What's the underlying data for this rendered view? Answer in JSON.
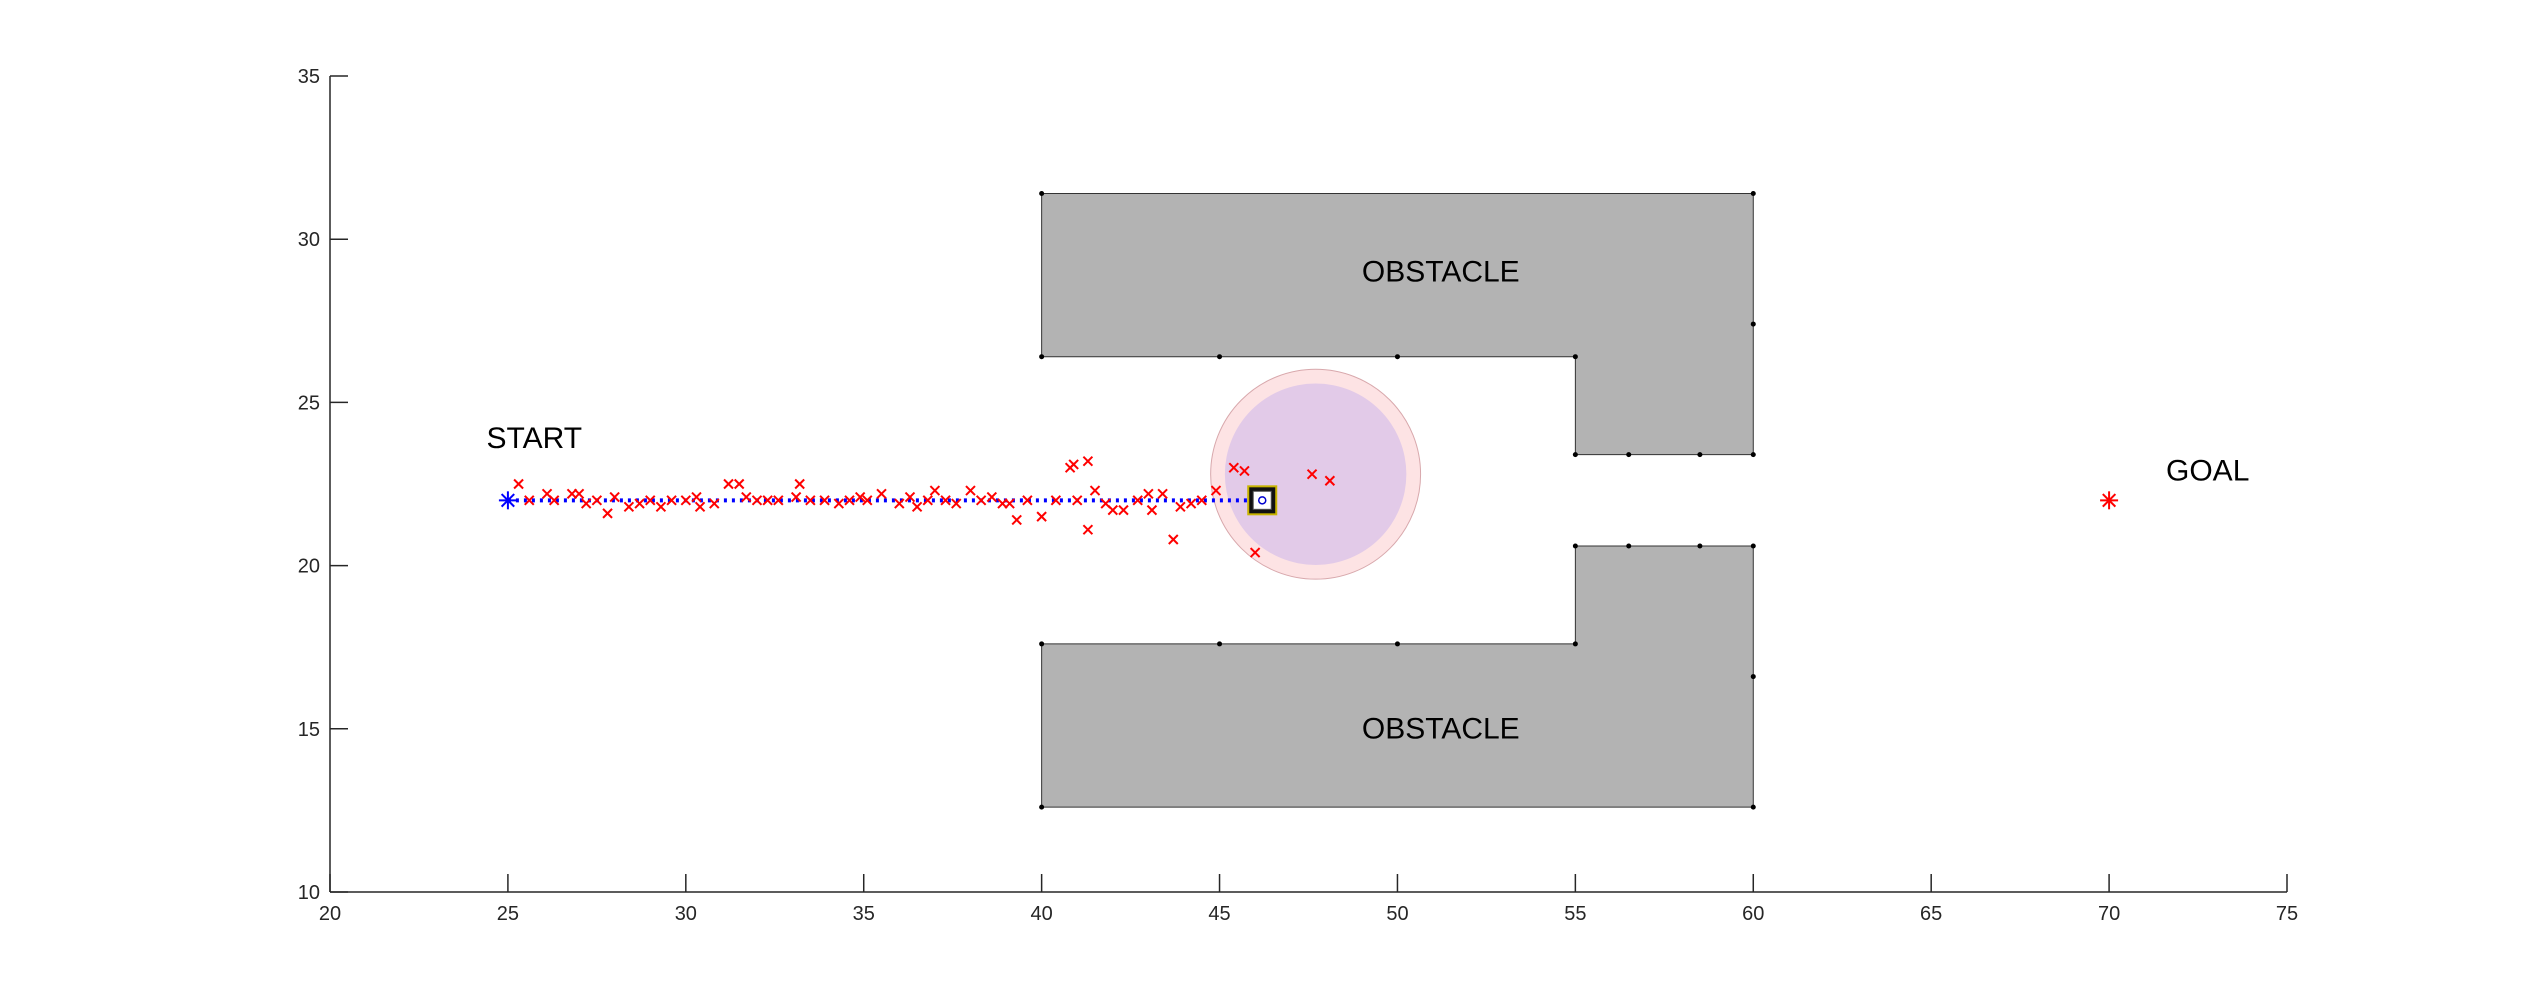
{
  "chart_data": {
    "type": "scatter",
    "title": "",
    "xlabel": "",
    "ylabel": "",
    "xlim": [
      20,
      75
    ],
    "ylim": [
      10,
      35
    ],
    "xticks": [
      20,
      25,
      30,
      35,
      40,
      45,
      50,
      55,
      60,
      65,
      70,
      75
    ],
    "yticks": [
      10,
      15,
      20,
      25,
      30,
      35
    ],
    "grid": false,
    "box": false,
    "colors": {
      "obstacle": "#b3b3b3",
      "path": "#0000ff",
      "measurement": "#ff0000",
      "sensor_outer": "#fde3e4",
      "sensor_inner": "#e2cae8",
      "axis": "#262626"
    },
    "obstacles": [
      {
        "polygon": [
          [
            40,
            31.4
          ],
          [
            60,
            31.4
          ],
          [
            60,
            23.4
          ],
          [
            55,
            23.4
          ],
          [
            55,
            26.4
          ],
          [
            40,
            26.4
          ]
        ],
        "vertices": [
          [
            40,
            31.4
          ],
          [
            60,
            31.4
          ],
          [
            60,
            27.4
          ],
          [
            60,
            23.4
          ],
          [
            58.5,
            23.4
          ],
          [
            56.5,
            23.4
          ],
          [
            55,
            23.4
          ],
          [
            55,
            26.4
          ],
          [
            50,
            26.4
          ],
          [
            45,
            26.4
          ],
          [
            40,
            26.4
          ]
        ]
      },
      {
        "polygon": [
          [
            40,
            12.6
          ],
          [
            60,
            12.6
          ],
          [
            60,
            20.6
          ],
          [
            55,
            20.6
          ],
          [
            55,
            17.6
          ],
          [
            40,
            17.6
          ]
        ],
        "vertices": [
          [
            40,
            12.6
          ],
          [
            60,
            12.6
          ],
          [
            60,
            16.6
          ],
          [
            60,
            20.6
          ],
          [
            58.5,
            20.6
          ],
          [
            56.5,
            20.6
          ],
          [
            55,
            20.6
          ],
          [
            55,
            17.6
          ],
          [
            50,
            17.6
          ],
          [
            45,
            17.6
          ],
          [
            40,
            17.6
          ]
        ]
      }
    ],
    "annotations": [
      {
        "text": "START",
        "x": 24.4,
        "y": 23.6
      },
      {
        "text": "GOAL",
        "x": 71.6,
        "y": 22.6
      },
      {
        "text": "OBSTACLE",
        "x": 49.0,
        "y": 28.7
      },
      {
        "text": "OBSTACLE",
        "x": 49.0,
        "y": 14.7
      }
    ],
    "start": [
      25,
      22
    ],
    "goal": [
      70,
      22
    ],
    "robot": [
      46.2,
      22
    ],
    "sensor_range": {
      "center": [
        47.7,
        22.8
      ],
      "radius_outer": 2.95,
      "radius_inner": 2.55
    },
    "path": {
      "x_start": 25,
      "x_end": 46.2,
      "y": 22
    },
    "measurements": [
      [
        25.3,
        22.5
      ],
      [
        25.6,
        22.0
      ],
      [
        26.1,
        22.2
      ],
      [
        26.3,
        22.0
      ],
      [
        26.8,
        22.2
      ],
      [
        27.0,
        22.2
      ],
      [
        27.2,
        21.9
      ],
      [
        27.5,
        22.0
      ],
      [
        27.8,
        21.6
      ],
      [
        28.0,
        22.1
      ],
      [
        28.4,
        21.8
      ],
      [
        28.7,
        21.9
      ],
      [
        29.0,
        22.0
      ],
      [
        29.3,
        21.8
      ],
      [
        29.6,
        22.0
      ],
      [
        30.0,
        22.0
      ],
      [
        30.3,
        22.1
      ],
      [
        30.4,
        21.8
      ],
      [
        30.8,
        21.9
      ],
      [
        31.2,
        22.5
      ],
      [
        31.5,
        22.5
      ],
      [
        31.7,
        22.1
      ],
      [
        32.0,
        22.0
      ],
      [
        32.3,
        22.0
      ],
      [
        32.6,
        22.0
      ],
      [
        33.1,
        22.1
      ],
      [
        33.2,
        22.5
      ],
      [
        33.5,
        22.0
      ],
      [
        33.9,
        22.0
      ],
      [
        34.3,
        21.9
      ],
      [
        34.6,
        22.0
      ],
      [
        34.9,
        22.1
      ],
      [
        35.1,
        22.0
      ],
      [
        35.5,
        22.2
      ],
      [
        36.0,
        21.9
      ],
      [
        36.3,
        22.1
      ],
      [
        36.5,
        21.8
      ],
      [
        36.8,
        22.0
      ],
      [
        37.0,
        22.3
      ],
      [
        37.3,
        22.0
      ],
      [
        37.6,
        21.9
      ],
      [
        38.0,
        22.3
      ],
      [
        38.3,
        22.0
      ],
      [
        38.6,
        22.1
      ],
      [
        38.9,
        21.9
      ],
      [
        39.1,
        21.9
      ],
      [
        39.3,
        21.4
      ],
      [
        39.6,
        22.0
      ],
      [
        40.0,
        21.5
      ],
      [
        40.4,
        22.0
      ],
      [
        40.8,
        23.0
      ],
      [
        40.9,
        23.1
      ],
      [
        41.0,
        22.0
      ],
      [
        41.3,
        23.2
      ],
      [
        41.3,
        21.1
      ],
      [
        41.5,
        22.3
      ],
      [
        41.8,
        21.9
      ],
      [
        42.0,
        21.7
      ],
      [
        42.3,
        21.7
      ],
      [
        42.7,
        22.0
      ],
      [
        43.0,
        22.2
      ],
      [
        43.1,
        21.7
      ],
      [
        43.4,
        22.2
      ],
      [
        43.7,
        20.8
      ],
      [
        43.9,
        21.8
      ],
      [
        44.2,
        21.9
      ],
      [
        44.5,
        22.0
      ],
      [
        44.9,
        22.3
      ],
      [
        45.4,
        23.0
      ],
      [
        45.7,
        22.9
      ],
      [
        46.0,
        20.4
      ],
      [
        47.6,
        22.8
      ],
      [
        48.1,
        22.6
      ]
    ]
  }
}
